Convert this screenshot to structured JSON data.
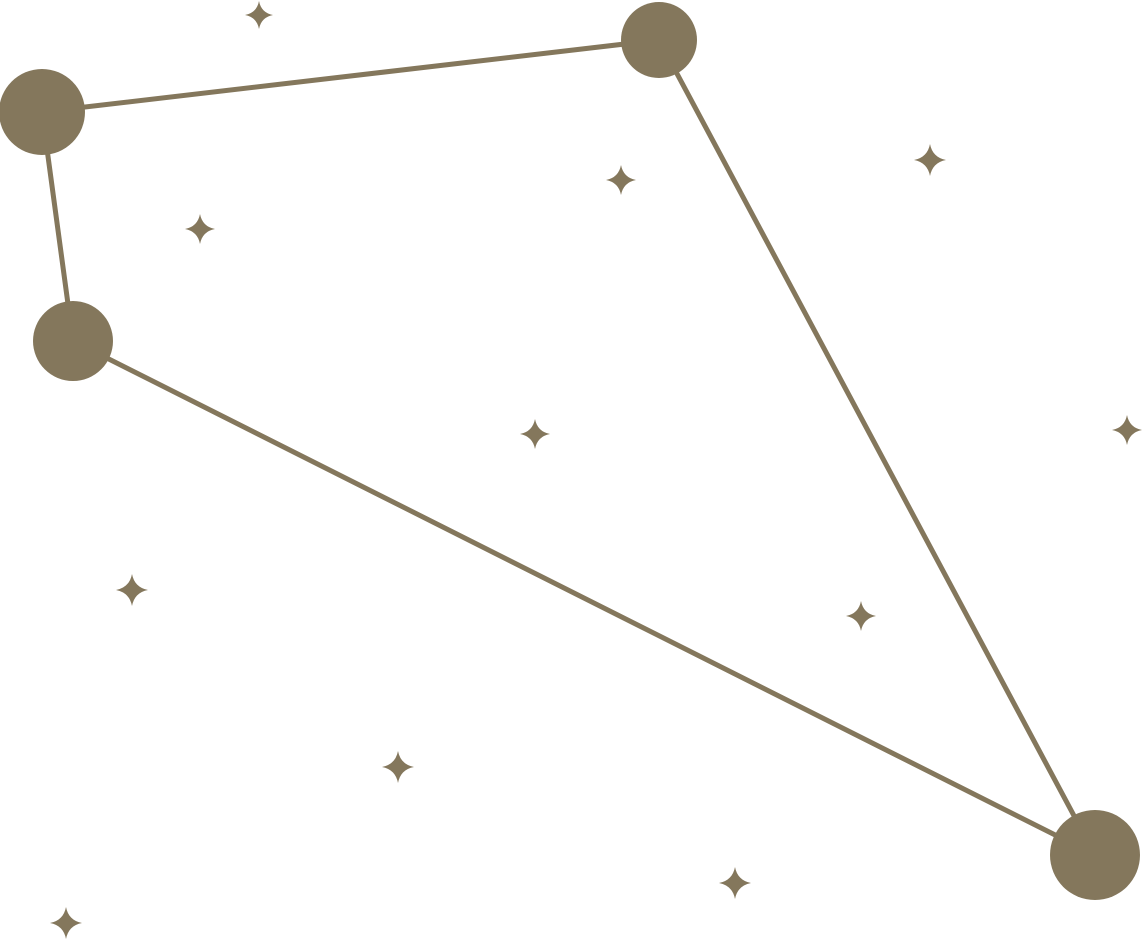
{
  "colors": {
    "ink": "#84775C",
    "background": "#FFFFFF"
  },
  "constellation": {
    "star_count": 4,
    "connection_count": 4
  },
  "icons": {
    "major_star": "filled-circle",
    "minor_star": "four-point-sparkle"
  }
}
